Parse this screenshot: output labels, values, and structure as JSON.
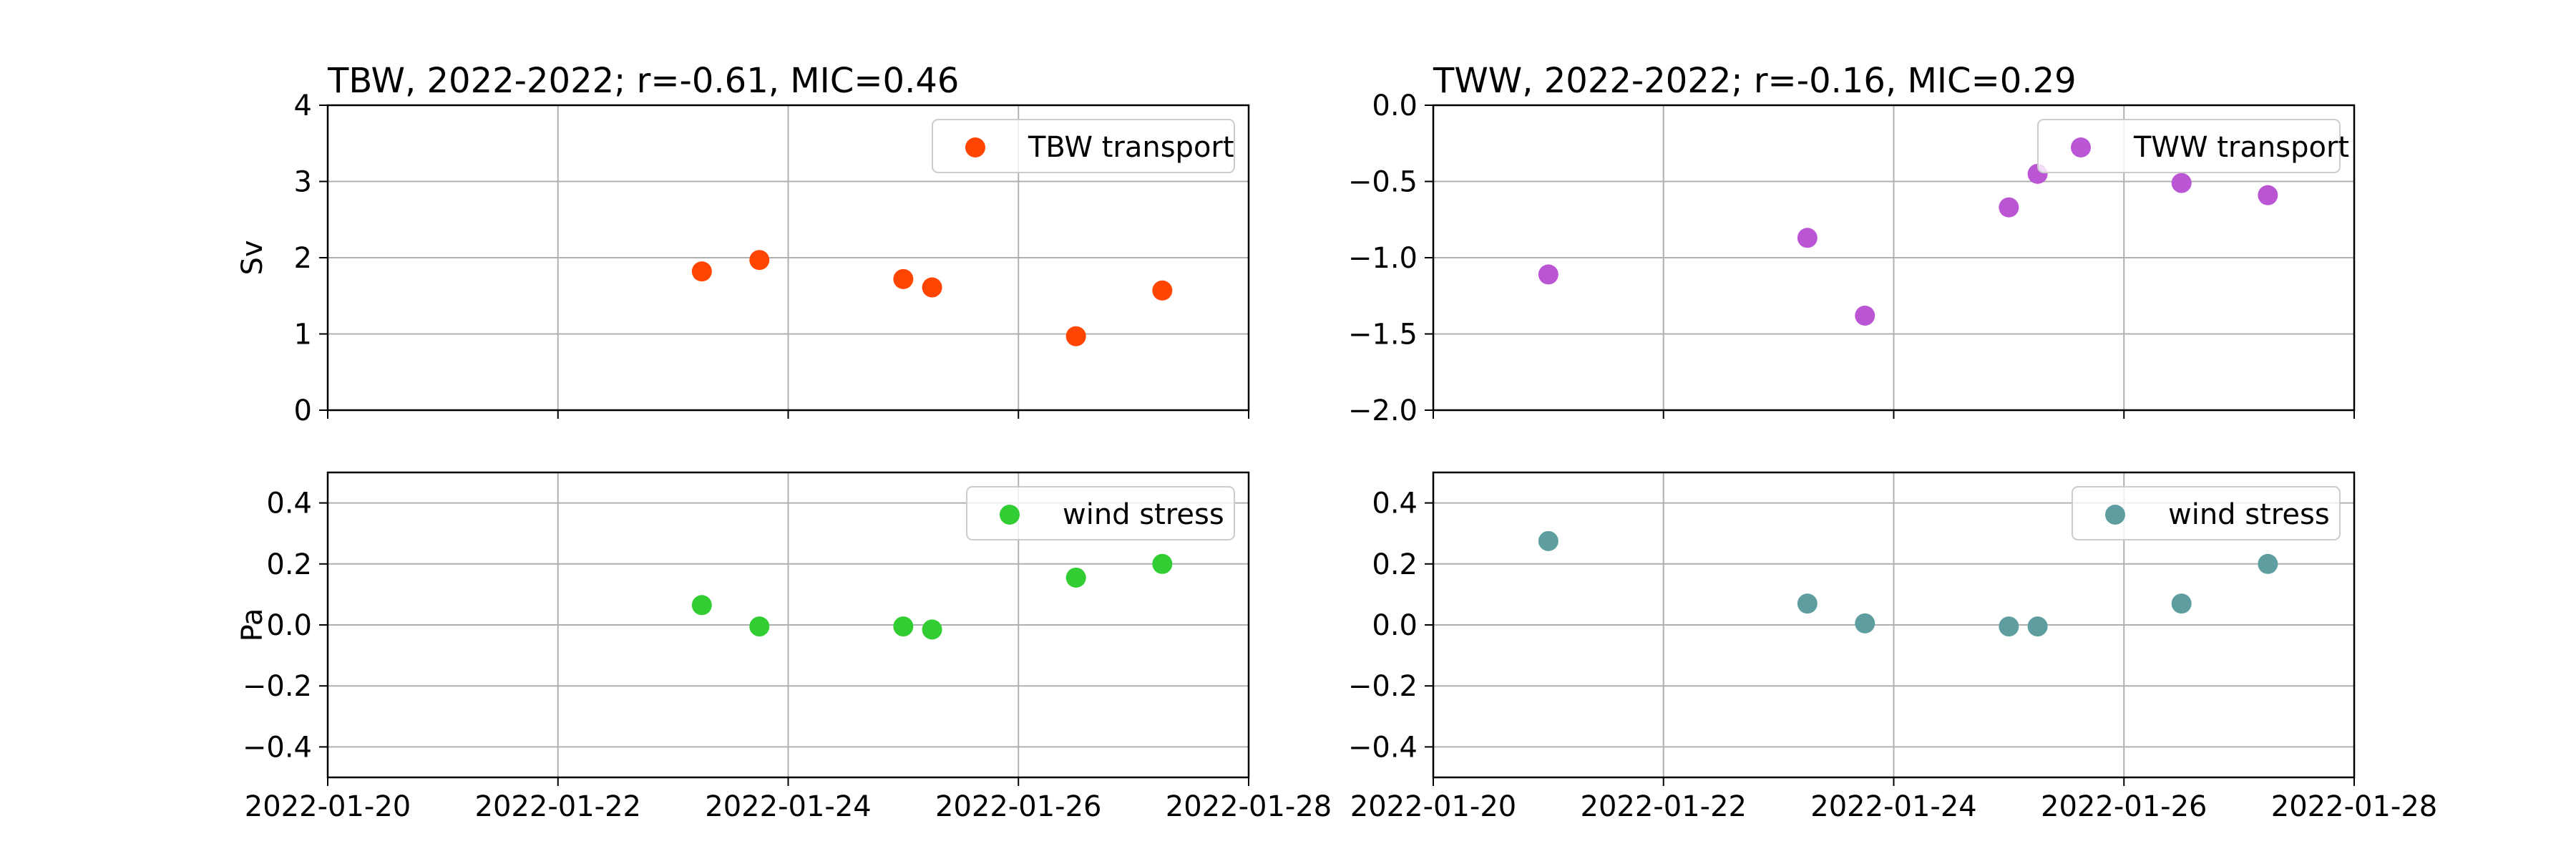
{
  "chart_data": [
    {
      "type": "scatter",
      "panel": "top-left",
      "title": "TBW, 2022-2022; r=-0.61, MIC=0.46",
      "ylabel": "Sv",
      "xlim": [
        "2022-01-20",
        "2022-01-28"
      ],
      "ylim": [
        0,
        4
      ],
      "x_ticks": [
        "2022-01-20",
        "2022-01-22",
        "2022-01-24",
        "2022-01-26",
        "2022-01-28"
      ],
      "x_tick_labels": [],
      "y_ticks": [
        0,
        1,
        2,
        3,
        4
      ],
      "y_tick_labels": [
        "0",
        "1",
        "2",
        "3",
        "4"
      ],
      "grid": true,
      "legend": "top-right",
      "series": [
        {
          "name": "TBW transport",
          "color": "#ff4500",
          "x": [
            "2022-01-23 06:00",
            "2022-01-23 18:00",
            "2022-01-25 00:00",
            "2022-01-25 06:00",
            "2022-01-26 12:00",
            "2022-01-27 06:00"
          ],
          "y": [
            1.82,
            1.97,
            1.72,
            1.61,
            0.97,
            1.57
          ]
        }
      ]
    },
    {
      "type": "scatter",
      "panel": "top-right",
      "title": "TWW, 2022-2022; r=-0.16, MIC=0.29",
      "ylabel": "",
      "xlim": [
        "2022-01-20",
        "2022-01-28"
      ],
      "ylim": [
        -2.0,
        0.0
      ],
      "x_ticks": [
        "2022-01-20",
        "2022-01-22",
        "2022-01-24",
        "2022-01-26",
        "2022-01-28"
      ],
      "x_tick_labels": [],
      "y_ticks": [
        -2.0,
        -1.5,
        -1.0,
        -0.5,
        0.0
      ],
      "y_tick_labels": [
        "−2.0",
        "−1.5",
        "−1.0",
        "−0.5",
        "0.0"
      ],
      "grid": true,
      "legend": "top-right",
      "series": [
        {
          "name": "TWW transport",
          "color": "#ba55d3",
          "x": [
            "2022-01-21 00:00",
            "2022-01-23 06:00",
            "2022-01-23 18:00",
            "2022-01-25 00:00",
            "2022-01-25 06:00",
            "2022-01-26 12:00",
            "2022-01-27 06:00"
          ],
          "y": [
            -1.11,
            -0.87,
            -1.38,
            -0.67,
            -0.45,
            -0.51,
            -0.59
          ]
        }
      ]
    },
    {
      "type": "scatter",
      "panel": "bottom-left",
      "title": "",
      "ylabel": "Pa",
      "xlim": [
        "2022-01-20",
        "2022-01-28"
      ],
      "ylim": [
        -0.5,
        0.5
      ],
      "x_ticks": [
        "2022-01-20",
        "2022-01-22",
        "2022-01-24",
        "2022-01-26",
        "2022-01-28"
      ],
      "x_tick_labels": [
        "2022-01-20",
        "2022-01-22",
        "2022-01-24",
        "2022-01-26",
        "2022-01-28"
      ],
      "y_ticks": [
        -0.4,
        -0.2,
        0.0,
        0.2,
        0.4
      ],
      "y_tick_labels": [
        "−0.4",
        "−0.2",
        "0.0",
        "0.2",
        "0.4"
      ],
      "grid": true,
      "legend": "top-right",
      "series": [
        {
          "name": "wind stress",
          "color": "#32cd32",
          "x": [
            "2022-01-23 06:00",
            "2022-01-23 18:00",
            "2022-01-25 00:00",
            "2022-01-25 06:00",
            "2022-01-26 12:00",
            "2022-01-27 06:00"
          ],
          "y": [
            0.065,
            -0.005,
            -0.005,
            -0.015,
            0.155,
            0.2
          ]
        }
      ]
    },
    {
      "type": "scatter",
      "panel": "bottom-right",
      "title": "",
      "ylabel": "",
      "xlim": [
        "2022-01-20",
        "2022-01-28"
      ],
      "ylim": [
        -0.5,
        0.5
      ],
      "x_ticks": [
        "2022-01-20",
        "2022-01-22",
        "2022-01-24",
        "2022-01-26",
        "2022-01-28"
      ],
      "x_tick_labels": [
        "2022-01-20",
        "2022-01-22",
        "2022-01-24",
        "2022-01-26",
        "2022-01-28"
      ],
      "y_ticks": [
        -0.4,
        -0.2,
        0.0,
        0.2,
        0.4
      ],
      "y_tick_labels": [
        "−0.4",
        "−0.2",
        "0.0",
        "0.2",
        "0.4"
      ],
      "grid": true,
      "legend": "top-right",
      "series": [
        {
          "name": "wind stress",
          "color": "#5f9ea0",
          "x": [
            "2022-01-21 00:00",
            "2022-01-23 06:00",
            "2022-01-23 18:00",
            "2022-01-25 00:00",
            "2022-01-25 06:00",
            "2022-01-26 12:00",
            "2022-01-27 06:00"
          ],
          "y": [
            0.275,
            0.07,
            0.005,
            -0.005,
            -0.005,
            0.07,
            0.2
          ]
        }
      ]
    }
  ]
}
